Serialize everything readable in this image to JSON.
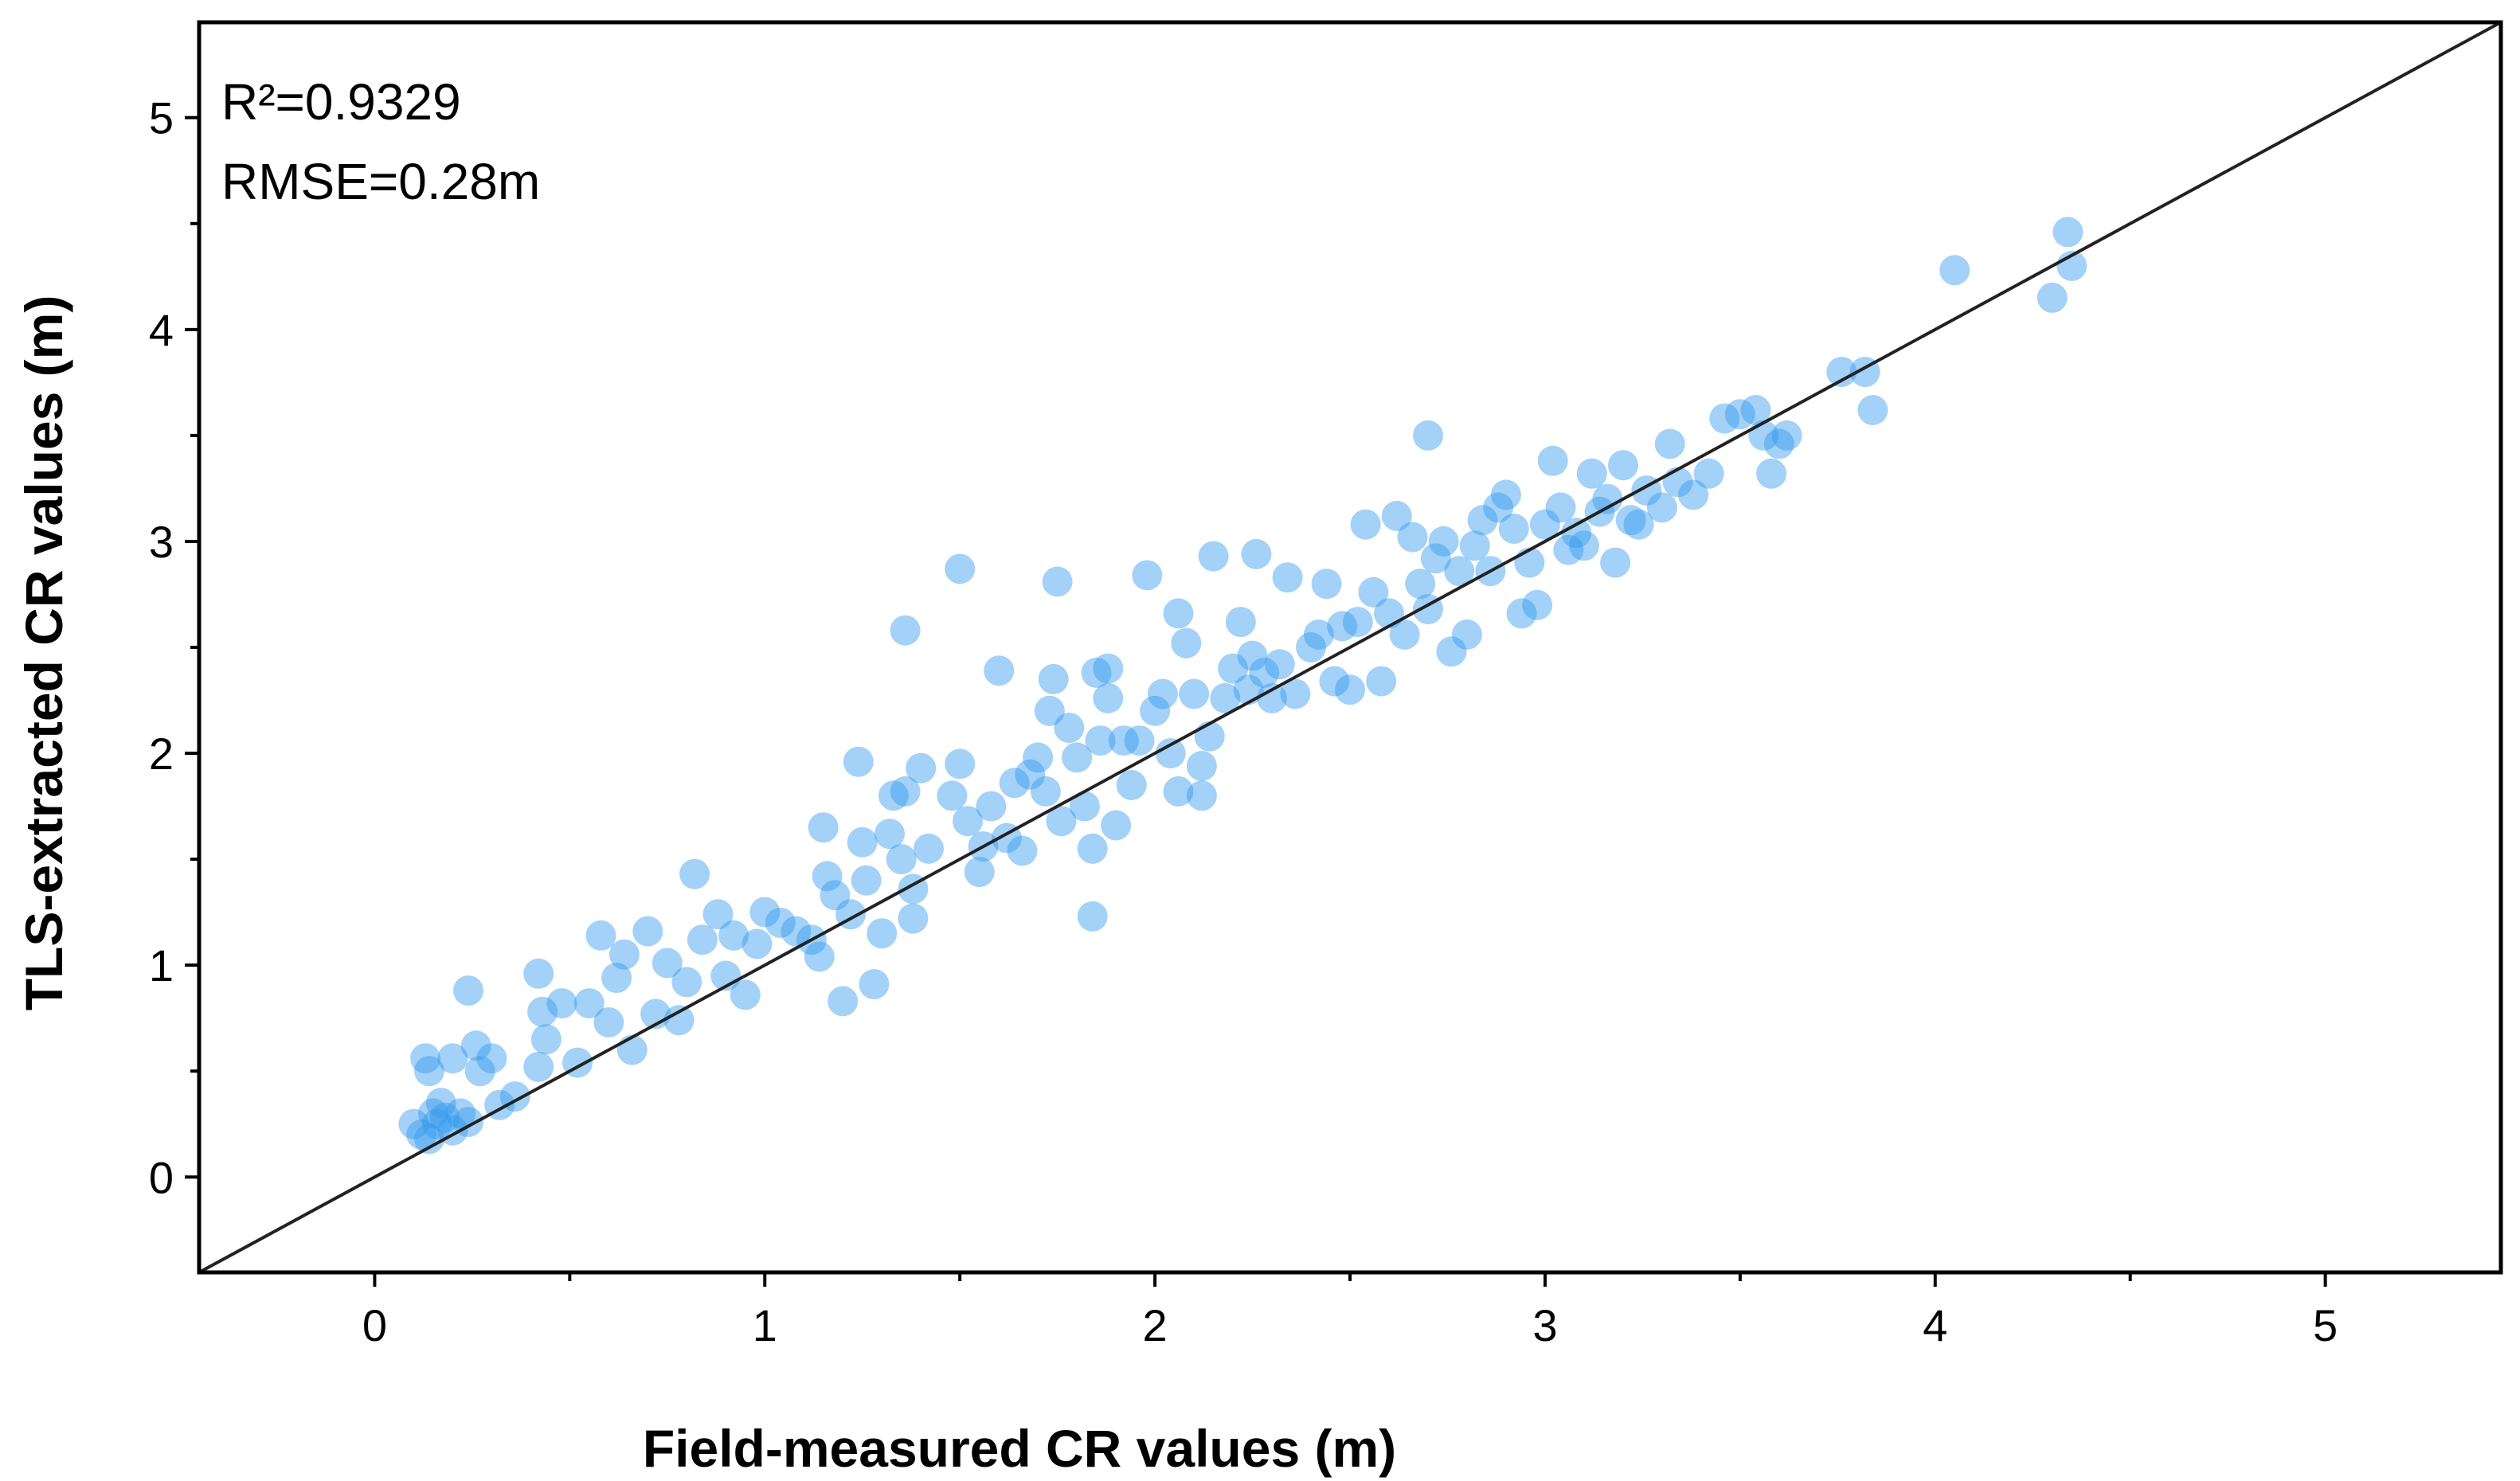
{
  "chart_data": {
    "type": "scatter",
    "title": "",
    "xlabel": "Field-measured CR values (m)",
    "ylabel": "TLS-extracted CR values (m)",
    "xlim": [
      -0.45,
      5.45
    ],
    "ylim": [
      -0.45,
      5.45
    ],
    "xticks": [
      "0",
      "1",
      "2",
      "3",
      "4",
      "5"
    ],
    "yticks": [
      "0",
      "1",
      "2",
      "3",
      "4",
      "5"
    ],
    "xtick_values": [
      0,
      1,
      2,
      3,
      4,
      5
    ],
    "ytick_values": [
      0,
      1,
      2,
      3,
      4,
      5
    ],
    "grid": false,
    "legend": "none",
    "reference_line": {
      "type": "1:1",
      "slope": 1,
      "intercept": 0
    },
    "annotations": [
      "R²=0.9329",
      "RMSE=0.28m"
    ],
    "marker_color": "#3399ee",
    "line_color": "#222222",
    "points": [
      [
        0.1,
        0.25
      ],
      [
        0.12,
        0.2
      ],
      [
        0.14,
        0.18
      ],
      [
        0.15,
        0.3
      ],
      [
        0.16,
        0.25
      ],
      [
        0.17,
        0.35
      ],
      [
        0.18,
        0.28
      ],
      [
        0.2,
        0.22
      ],
      [
        0.22,
        0.3
      ],
      [
        0.24,
        0.26
      ],
      [
        0.14,
        0.5
      ],
      [
        0.13,
        0.56
      ],
      [
        0.2,
        0.56
      ],
      [
        0.26,
        0.62
      ],
      [
        0.3,
        0.56
      ],
      [
        0.27,
        0.5
      ],
      [
        0.24,
        0.88
      ],
      [
        0.32,
        0.34
      ],
      [
        0.36,
        0.38
      ],
      [
        0.42,
        0.96
      ],
      [
        0.43,
        0.78
      ],
      [
        0.44,
        0.65
      ],
      [
        0.42,
        0.52
      ],
      [
        0.48,
        0.82
      ],
      [
        0.52,
        0.54
      ],
      [
        0.55,
        0.82
      ],
      [
        0.58,
        1.14
      ],
      [
        0.62,
        0.94
      ],
      [
        0.64,
        1.05
      ],
      [
        0.66,
        0.6
      ],
      [
        0.6,
        0.73
      ],
      [
        0.7,
        1.16
      ],
      [
        0.72,
        0.77
      ],
      [
        0.75,
        1.01
      ],
      [
        0.78,
        0.74
      ],
      [
        0.8,
        0.92
      ],
      [
        0.82,
        1.43
      ],
      [
        0.84,
        1.12
      ],
      [
        0.88,
        1.24
      ],
      [
        0.9,
        0.95
      ],
      [
        0.92,
        1.14
      ],
      [
        0.95,
        0.86
      ],
      [
        0.98,
        1.1
      ],
      [
        1.0,
        1.25
      ],
      [
        1.04,
        1.2
      ],
      [
        1.08,
        1.16
      ],
      [
        1.12,
        1.12
      ],
      [
        1.14,
        1.04
      ],
      [
        1.15,
        1.65
      ],
      [
        1.16,
        1.42
      ],
      [
        1.18,
        1.33
      ],
      [
        1.2,
        0.83
      ],
      [
        1.22,
        1.24
      ],
      [
        1.24,
        1.96
      ],
      [
        1.25,
        1.58
      ],
      [
        1.26,
        1.4
      ],
      [
        1.28,
        0.91
      ],
      [
        1.3,
        1.15
      ],
      [
        1.32,
        1.62
      ],
      [
        1.33,
        1.8
      ],
      [
        1.35,
        1.5
      ],
      [
        1.36,
        1.82
      ],
      [
        1.38,
        1.36
      ],
      [
        1.38,
        1.22
      ],
      [
        1.4,
        1.93
      ],
      [
        1.42,
        1.55
      ],
      [
        1.36,
        2.58
      ],
      [
        1.48,
        1.8
      ],
      [
        1.5,
        1.95
      ],
      [
        1.52,
        1.68
      ],
      [
        1.5,
        2.87
      ],
      [
        1.55,
        1.44
      ],
      [
        1.56,
        1.56
      ],
      [
        1.58,
        1.75
      ],
      [
        1.6,
        2.39
      ],
      [
        1.62,
        1.6
      ],
      [
        1.64,
        1.86
      ],
      [
        1.66,
        1.54
      ],
      [
        1.68,
        1.9
      ],
      [
        1.7,
        1.98
      ],
      [
        1.72,
        1.82
      ],
      [
        1.73,
        2.2
      ],
      [
        1.74,
        2.35
      ],
      [
        1.75,
        2.81
      ],
      [
        1.76,
        1.68
      ],
      [
        1.78,
        2.12
      ],
      [
        1.8,
        1.98
      ],
      [
        1.82,
        1.75
      ],
      [
        1.84,
        1.55
      ],
      [
        1.84,
        1.23
      ],
      [
        1.85,
        2.38
      ],
      [
        1.86,
        2.06
      ],
      [
        1.88,
        2.26
      ],
      [
        1.88,
        2.4
      ],
      [
        1.9,
        1.66
      ],
      [
        1.92,
        2.06
      ],
      [
        1.94,
        1.85
      ],
      [
        1.96,
        2.06
      ],
      [
        1.98,
        2.84
      ],
      [
        2.0,
        2.2
      ],
      [
        2.02,
        2.28
      ],
      [
        2.04,
        2.0
      ],
      [
        2.06,
        1.82
      ],
      [
        2.06,
        2.66
      ],
      [
        2.08,
        2.52
      ],
      [
        2.1,
        2.28
      ],
      [
        2.12,
        1.8
      ],
      [
        2.12,
        1.94
      ],
      [
        2.14,
        2.08
      ],
      [
        2.15,
        2.93
      ],
      [
        2.18,
        2.26
      ],
      [
        2.2,
        2.4
      ],
      [
        2.22,
        2.62
      ],
      [
        2.24,
        2.3
      ],
      [
        2.25,
        2.46
      ],
      [
        2.26,
        2.94
      ],
      [
        2.28,
        2.38
      ],
      [
        2.3,
        2.26
      ],
      [
        2.32,
        2.42
      ],
      [
        2.34,
        2.83
      ],
      [
        2.36,
        2.28
      ],
      [
        2.4,
        2.5
      ],
      [
        2.42,
        2.56
      ],
      [
        2.44,
        2.8
      ],
      [
        2.46,
        2.34
      ],
      [
        2.48,
        2.6
      ],
      [
        2.5,
        2.3
      ],
      [
        2.52,
        2.62
      ],
      [
        2.54,
        3.08
      ],
      [
        2.56,
        2.76
      ],
      [
        2.58,
        2.34
      ],
      [
        2.6,
        2.66
      ],
      [
        2.62,
        3.12
      ],
      [
        2.64,
        2.56
      ],
      [
        2.66,
        3.02
      ],
      [
        2.68,
        2.8
      ],
      [
        2.7,
        2.68
      ],
      [
        2.7,
        3.5
      ],
      [
        2.72,
        2.92
      ],
      [
        2.74,
        3.0
      ],
      [
        2.76,
        2.48
      ],
      [
        2.78,
        2.86
      ],
      [
        2.8,
        2.56
      ],
      [
        2.82,
        2.98
      ],
      [
        2.84,
        3.1
      ],
      [
        2.86,
        2.86
      ],
      [
        2.88,
        3.16
      ],
      [
        2.9,
        3.22
      ],
      [
        2.92,
        3.06
      ],
      [
        2.94,
        2.66
      ],
      [
        2.96,
        2.9
      ],
      [
        2.98,
        2.7
      ],
      [
        3.0,
        3.08
      ],
      [
        3.02,
        3.38
      ],
      [
        3.04,
        3.16
      ],
      [
        3.06,
        2.96
      ],
      [
        3.08,
        3.04
      ],
      [
        3.1,
        2.98
      ],
      [
        3.12,
        3.32
      ],
      [
        3.14,
        3.14
      ],
      [
        3.16,
        3.2
      ],
      [
        3.18,
        2.9
      ],
      [
        3.2,
        3.36
      ],
      [
        3.22,
        3.1
      ],
      [
        3.24,
        3.08
      ],
      [
        3.26,
        3.24
      ],
      [
        3.3,
        3.16
      ],
      [
        3.32,
        3.46
      ],
      [
        3.34,
        3.28
      ],
      [
        3.38,
        3.22
      ],
      [
        3.42,
        3.32
      ],
      [
        3.46,
        3.58
      ],
      [
        3.5,
        3.6
      ],
      [
        3.54,
        3.62
      ],
      [
        3.56,
        3.5
      ],
      [
        3.58,
        3.32
      ],
      [
        3.6,
        3.46
      ],
      [
        3.62,
        3.5
      ],
      [
        3.76,
        3.8
      ],
      [
        3.82,
        3.8
      ],
      [
        3.84,
        3.62
      ],
      [
        4.05,
        4.28
      ],
      [
        4.3,
        4.15
      ],
      [
        4.34,
        4.46
      ],
      [
        4.35,
        4.3
      ]
    ]
  }
}
